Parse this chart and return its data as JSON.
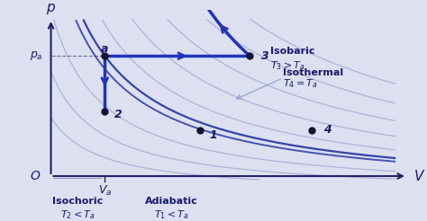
{
  "bg_color": "#dde0f0",
  "axis_color": "#222266",
  "curve_color_light": "#9aa0cc",
  "curve_color_dark": "#3344aa",
  "process_color": "#2233bb",
  "point_color": "#111133",
  "text_color": "#1a1a6e",
  "label_bold_color": "#1a1a6e",
  "xlim": [
    0,
    10
  ],
  "ylim": [
    0,
    10
  ],
  "Va": 2.5,
  "Pa": 7.5,
  "point_a": [
    2.5,
    7.5
  ],
  "point_2": [
    2.5,
    4.5
  ],
  "point_3": [
    6.0,
    7.5
  ],
  "point_1": [
    4.8,
    3.5
  ],
  "point_4": [
    7.5,
    3.5
  ],
  "isotherm_constants": [
    5,
    8,
    12,
    17,
    23,
    30,
    38,
    47,
    57
  ],
  "figsize": [
    4.74,
    2.46
  ],
  "dpi": 100
}
